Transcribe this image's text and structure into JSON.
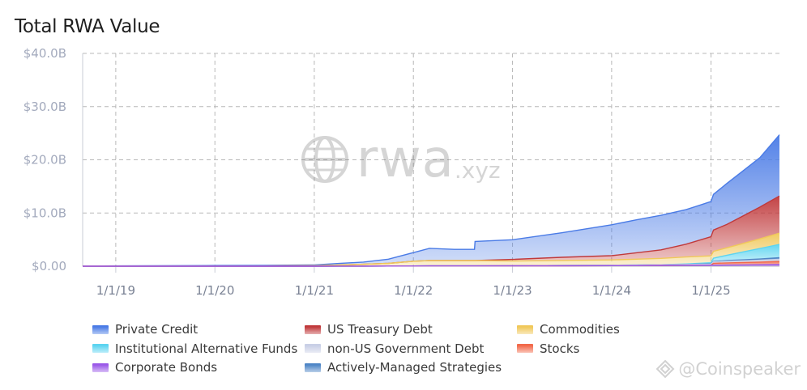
{
  "header": {
    "title": "Total RWA Value"
  },
  "watermarks": {
    "main_big": "rwa",
    "main_small": ".xyz",
    "corner": "@Coinspeaker",
    "main_icon": "globe-icon",
    "corner_icon": "coinspeaker-logo-icon"
  },
  "chart_data": {
    "type": "area",
    "stacked": true,
    "title": "Total RWA Value",
    "xlabel": "",
    "ylabel": "",
    "xlim": [
      "2018-09-01",
      "2025-09-10"
    ],
    "ylim": [
      0,
      40
    ],
    "y_unit": "billion USD",
    "grid": true,
    "legend_position": "bottom",
    "y_ticks": [
      {
        "value": 0,
        "label": "$0.00"
      },
      {
        "value": 10,
        "label": "$10.0B"
      },
      {
        "value": 20,
        "label": "$20.0B"
      },
      {
        "value": 30,
        "label": "$30.0B"
      },
      {
        "value": 40,
        "label": "$40.0B"
      }
    ],
    "x_ticks": [
      {
        "value": "2019-01-01",
        "label": "1/1/19"
      },
      {
        "value": "2020-01-01",
        "label": "1/1/20"
      },
      {
        "value": "2021-01-01",
        "label": "1/1/21"
      },
      {
        "value": "2022-01-01",
        "label": "1/1/22"
      },
      {
        "value": "2023-01-01",
        "label": "1/1/23"
      },
      {
        "value": "2024-01-01",
        "label": "1/1/24"
      },
      {
        "value": "2025-01-01",
        "label": "1/1/25"
      }
    ],
    "x": [
      "2018-09-01",
      "2019-01-01",
      "2020-01-01",
      "2020-07-01",
      "2021-01-01",
      "2021-04-01",
      "2021-07-01",
      "2021-10-01",
      "2022-01-01",
      "2022-03-01",
      "2022-06-01",
      "2022-08-14",
      "2022-08-16",
      "2023-01-01",
      "2023-07-01",
      "2024-01-01",
      "2024-04-01",
      "2024-07-01",
      "2024-10-01",
      "2025-01-01",
      "2025-01-10",
      "2025-03-01",
      "2025-05-01",
      "2025-07-01",
      "2025-09-10"
    ],
    "series": [
      {
        "name": "Corporate Bonds",
        "color": "#9b59e8",
        "values": [
          0,
          0,
          0,
          0,
          0,
          0.01,
          0.02,
          0.03,
          0.05,
          0.06,
          0.06,
          0.06,
          0.06,
          0.07,
          0.08,
          0.1,
          0.12,
          0.15,
          0.18,
          0.2,
          0.2,
          0.22,
          0.25,
          0.28,
          0.3
        ]
      },
      {
        "name": "Stocks",
        "color": "#f2694a",
        "values": [
          0,
          0,
          0,
          0,
          0,
          0,
          0,
          0,
          0,
          0,
          0,
          0,
          0,
          0,
          0,
          0,
          0,
          0,
          0,
          0,
          0.35,
          0.4,
          0.45,
          0.5,
          0.6
        ]
      },
      {
        "name": "non-US Government Debt",
        "color": "#c9cfe6",
        "values": [
          0,
          0,
          0,
          0,
          0,
          0,
          0,
          0,
          0,
          0,
          0,
          0,
          0,
          0,
          0.05,
          0.08,
          0.1,
          0.12,
          0.15,
          0.2,
          0.25,
          0.3,
          0.32,
          0.35,
          0.4
        ]
      },
      {
        "name": "Actively-Managed Strategies",
        "color": "#4f86c6",
        "values": [
          0,
          0,
          0,
          0,
          0,
          0,
          0,
          0,
          0,
          0,
          0,
          0,
          0,
          0,
          0,
          0,
          0,
          0,
          0,
          0.05,
          0.1,
          0.15,
          0.18,
          0.22,
          0.3
        ]
      },
      {
        "name": "Institutional Alternative Funds",
        "color": "#5cd4f0",
        "values": [
          0,
          0,
          0,
          0,
          0,
          0,
          0,
          0,
          0,
          0,
          0,
          0,
          0,
          0,
          0,
          0,
          0,
          0,
          0.1,
          0.2,
          0.6,
          1.0,
          1.5,
          2.0,
          2.5
        ]
      },
      {
        "name": "Commodities",
        "color": "#f0c85a",
        "values": [
          0,
          0.01,
          0.03,
          0.05,
          0.1,
          0.2,
          0.35,
          0.5,
          0.9,
          1.0,
          1.0,
          1.0,
          1.0,
          0.9,
          0.95,
          1.0,
          1.1,
          1.2,
          1.3,
          1.3,
          1.3,
          1.4,
          1.6,
          1.8,
          2.1
        ]
      },
      {
        "name": "US Treasury Debt",
        "color": "#c0393b",
        "values": [
          0,
          0,
          0,
          0,
          0,
          0,
          0,
          0,
          0,
          0,
          0,
          0,
          0,
          0.3,
          0.6,
          0.8,
          1.2,
          1.6,
          2.4,
          3.6,
          4.0,
          4.4,
          5.2,
          6.0,
          7.0
        ]
      },
      {
        "name": "Private Credit",
        "color": "#4a7be6",
        "values": [
          0,
          0.05,
          0.1,
          0.12,
          0.15,
          0.3,
          0.4,
          0.8,
          1.6,
          2.3,
          2.1,
          2.1,
          3.6,
          3.7,
          4.6,
          5.8,
          6.2,
          6.5,
          6.5,
          6.6,
          6.7,
          7.7,
          8.5,
          9.3,
          11.5
        ]
      }
    ],
    "legend": [
      {
        "name": "Private Credit",
        "color": "#4a7be6"
      },
      {
        "name": "US Treasury Debt",
        "color": "#c0393b"
      },
      {
        "name": "Commodities",
        "color": "#f0c85a"
      },
      {
        "name": "Institutional Alternative Funds",
        "color": "#5cd4f0"
      },
      {
        "name": "non-US Government Debt",
        "color": "#c9cfe6"
      },
      {
        "name": "Stocks",
        "color": "#f2694a"
      },
      {
        "name": "Corporate Bonds",
        "color": "#9b59e8"
      },
      {
        "name": "Actively-Managed Strategies",
        "color": "#4f86c6"
      }
    ]
  }
}
